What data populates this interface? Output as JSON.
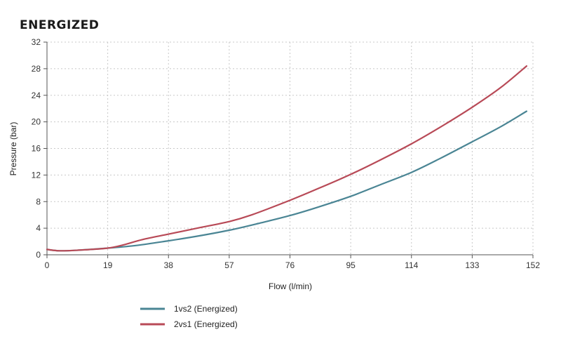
{
  "chart_data": {
    "type": "line",
    "title": "ENERGIZED",
    "xlabel": "Flow (l/min)",
    "ylabel": "Pressure (bar)",
    "xlim": [
      0,
      152
    ],
    "ylim": [
      0,
      32
    ],
    "xticks": [
      0,
      19,
      38,
      57,
      76,
      95,
      114,
      133,
      152
    ],
    "yticks": [
      0,
      4,
      8,
      12,
      16,
      20,
      24,
      28,
      32
    ],
    "grid": true,
    "legend_position": "bottom-left",
    "series": [
      {
        "name": "1vs2 (Energized)",
        "color": "#4a8594",
        "points": [
          [
            0,
            0.8
          ],
          [
            4,
            0.6
          ],
          [
            10,
            0.7
          ],
          [
            19,
            1.0
          ],
          [
            28,
            1.4
          ],
          [
            38,
            2.1
          ],
          [
            47,
            2.8
          ],
          [
            57,
            3.7
          ],
          [
            66,
            4.7
          ],
          [
            76,
            5.9
          ],
          [
            85,
            7.2
          ],
          [
            95,
            8.8
          ],
          [
            104,
            10.5
          ],
          [
            114,
            12.4
          ],
          [
            123,
            14.5
          ],
          [
            133,
            17.0
          ],
          [
            142,
            19.3
          ],
          [
            150,
            21.6
          ]
        ]
      },
      {
        "name": "2vs1 (Energized)",
        "color": "#b84a57",
        "points": [
          [
            0,
            0.8
          ],
          [
            4,
            0.6
          ],
          [
            10,
            0.7
          ],
          [
            19,
            1.0
          ],
          [
            24,
            1.5
          ],
          [
            30,
            2.3
          ],
          [
            38,
            3.1
          ],
          [
            47,
            4.0
          ],
          [
            57,
            5.0
          ],
          [
            64,
            6.0
          ],
          [
            76,
            8.2
          ],
          [
            85,
            10.0
          ],
          [
            95,
            12.1
          ],
          [
            104,
            14.2
          ],
          [
            114,
            16.7
          ],
          [
            123,
            19.2
          ],
          [
            133,
            22.2
          ],
          [
            142,
            25.2
          ],
          [
            150,
            28.4
          ]
        ]
      }
    ]
  }
}
